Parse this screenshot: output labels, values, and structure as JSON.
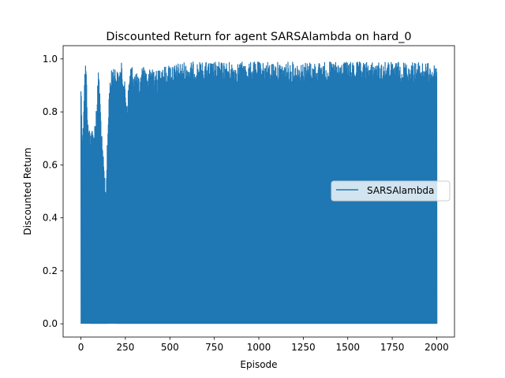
{
  "chart_data": {
    "type": "line",
    "title": "Discounted Return for agent SARSAlambda on hard_0",
    "xlabel": "Episode",
    "ylabel": "Discounted Return",
    "xlim": [
      -100,
      2100
    ],
    "ylim": [
      -0.05,
      1.05
    ],
    "xticks": [
      0,
      250,
      500,
      750,
      1000,
      1250,
      1500,
      1750,
      2000
    ],
    "xtick_labels": [
      "0",
      "250",
      "500",
      "750",
      "1000",
      "1250",
      "1500",
      "1750",
      "2000"
    ],
    "yticks": [
      0.0,
      0.2,
      0.4,
      0.6,
      0.8,
      1.0
    ],
    "ytick_labels": [
      "0.0",
      "0.2",
      "0.4",
      "0.6",
      "0.8",
      "1.0"
    ],
    "grid": false,
    "legend": {
      "position": "center-right"
    },
    "series": [
      {
        "name": "SARSAlambda",
        "color": "#1f77b4",
        "x_range": [
          0,
          2000
        ],
        "y_min": 0.0,
        "envelope_upper": [
          {
            "x": 0,
            "y": 0.93
          },
          {
            "x": 10,
            "y": 0.7
          },
          {
            "x": 20,
            "y": 0.96
          },
          {
            "x": 28,
            "y": 1.0
          },
          {
            "x": 40,
            "y": 0.76
          },
          {
            "x": 60,
            "y": 0.74
          },
          {
            "x": 75,
            "y": 0.74
          },
          {
            "x": 90,
            "y": 0.86
          },
          {
            "x": 100,
            "y": 0.98
          },
          {
            "x": 120,
            "y": 0.68
          },
          {
            "x": 140,
            "y": 0.52
          },
          {
            "x": 160,
            "y": 0.91
          },
          {
            "x": 180,
            "y": 0.99
          },
          {
            "x": 210,
            "y": 0.95
          },
          {
            "x": 230,
            "y": 0.99
          },
          {
            "x": 260,
            "y": 0.85
          },
          {
            "x": 280,
            "y": 0.99
          },
          {
            "x": 300,
            "y": 0.96
          },
          {
            "x": 330,
            "y": 0.93
          },
          {
            "x": 350,
            "y": 0.99
          },
          {
            "x": 380,
            "y": 0.95
          },
          {
            "x": 400,
            "y": 0.99
          },
          {
            "x": 430,
            "y": 0.95
          },
          {
            "x": 450,
            "y": 0.99
          },
          {
            "x": 480,
            "y": 0.97
          },
          {
            "x": 500,
            "y": 0.99
          },
          {
            "x": 530,
            "y": 0.98
          },
          {
            "x": 560,
            "y": 0.99
          },
          {
            "x": 600,
            "y": 0.99
          },
          {
            "x": 650,
            "y": 0.99
          },
          {
            "x": 700,
            "y": 0.99
          },
          {
            "x": 750,
            "y": 0.99
          },
          {
            "x": 800,
            "y": 0.99
          },
          {
            "x": 850,
            "y": 0.99
          },
          {
            "x": 900,
            "y": 0.99
          },
          {
            "x": 950,
            "y": 0.99
          },
          {
            "x": 1000,
            "y": 0.99
          },
          {
            "x": 1100,
            "y": 0.99
          },
          {
            "x": 1200,
            "y": 0.99
          },
          {
            "x": 1300,
            "y": 0.99
          },
          {
            "x": 1400,
            "y": 0.99
          },
          {
            "x": 1500,
            "y": 0.99
          },
          {
            "x": 1600,
            "y": 0.99
          },
          {
            "x": 1700,
            "y": 0.99
          },
          {
            "x": 1800,
            "y": 0.99
          },
          {
            "x": 1900,
            "y": 0.99
          },
          {
            "x": 2000,
            "y": 0.98
          }
        ],
        "dense_lower": [
          {
            "x": 0,
            "y": 0.0
          },
          {
            "x": 50,
            "y": 0.0
          },
          {
            "x": 60,
            "y": 0.72
          },
          {
            "x": 90,
            "y": 0.56
          },
          {
            "x": 150,
            "y": 0.0
          },
          {
            "x": 200,
            "y": 0.0
          },
          {
            "x": 220,
            "y": 0.62
          },
          {
            "x": 300,
            "y": 0.62
          },
          {
            "x": 400,
            "y": 0.55
          },
          {
            "x": 500,
            "y": 0.68
          },
          {
            "x": 580,
            "y": 0.0
          },
          {
            "x": 600,
            "y": 0.8
          },
          {
            "x": 700,
            "y": 0.82
          },
          {
            "x": 750,
            "y": 0.0
          },
          {
            "x": 800,
            "y": 0.86
          },
          {
            "x": 1000,
            "y": 0.87
          },
          {
            "x": 1200,
            "y": 0.88
          },
          {
            "x": 1500,
            "y": 0.88
          },
          {
            "x": 1800,
            "y": 0.88
          },
          {
            "x": 2000,
            "y": 0.88
          }
        ]
      }
    ]
  }
}
